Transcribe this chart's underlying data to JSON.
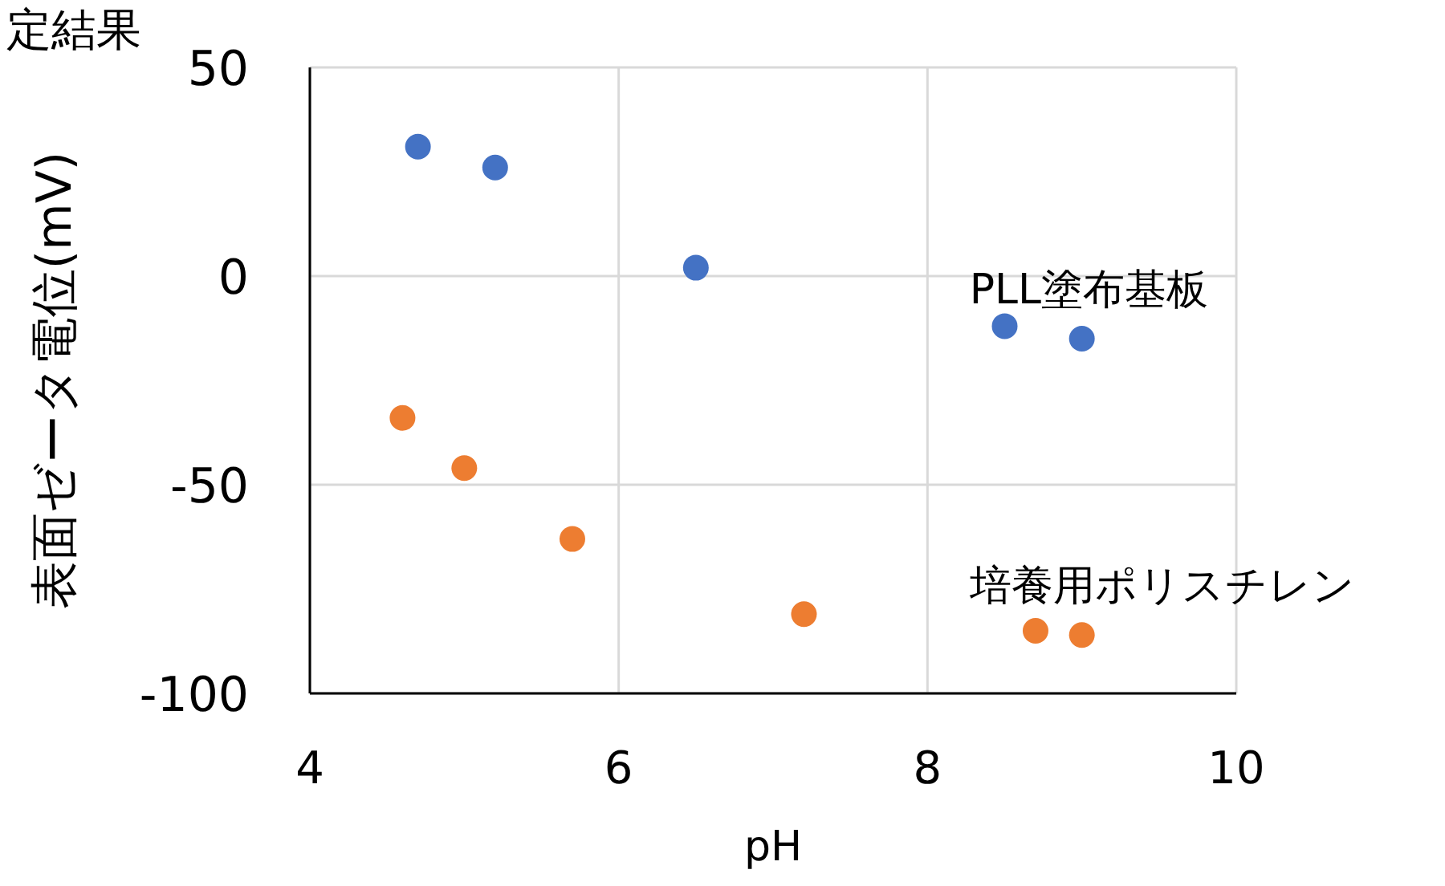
{
  "chart_data": {
    "type": "scatter",
    "title": "定結果",
    "xlabel": "pH",
    "ylabel": "表面ゼータ電位(mV)",
    "xlim": [
      4,
      10
    ],
    "xticks": [
      4,
      6,
      8,
      10
    ],
    "ylim": [
      -100,
      50
    ],
    "yticks": [
      -100,
      -50,
      0,
      50
    ],
    "grid": true,
    "marker": "circle",
    "series": [
      {
        "name": "PLL塗布基板",
        "color": "#4472c4",
        "x": [
          4.7,
          5.2,
          6.5,
          8.5,
          9.0
        ],
        "values": [
          31,
          26,
          2,
          -12,
          -15
        ]
      },
      {
        "name": "培養用ポリスチレン",
        "color": "#ed7d31",
        "x": [
          4.6,
          5.0,
          5.7,
          7.2,
          8.7,
          9.0
        ],
        "values": [
          -34,
          -46,
          -63,
          -81,
          -85,
          -86
        ]
      }
    ]
  }
}
